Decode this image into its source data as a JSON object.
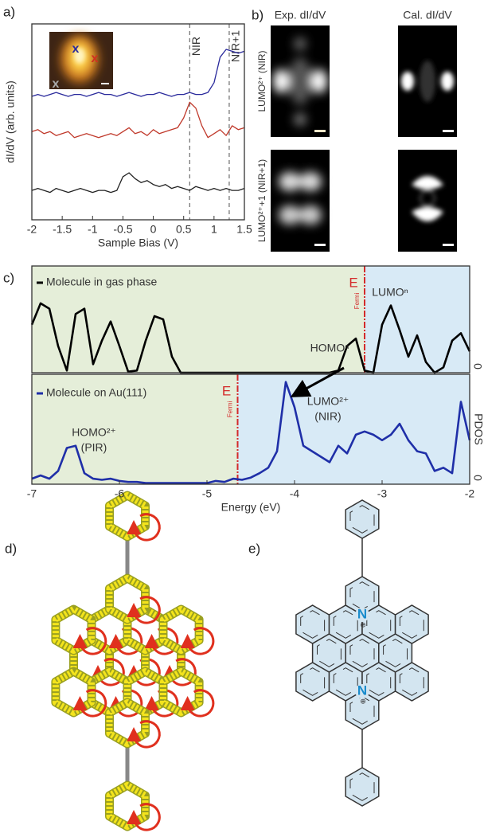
{
  "panels": [
    "a)",
    "b)",
    "c)",
    "d)",
    "e)"
  ],
  "panel_b": {
    "columns": [
      "Exp. dI/dV",
      "Cal. dI/dV"
    ],
    "rows": [
      "LUMO²⁺ (NIR)",
      "LUMO²⁺+1 (NIR+1)"
    ]
  },
  "panel_e": {
    "atoms": [
      "N",
      "N"
    ],
    "charges": [
      "⊕",
      "⊕"
    ]
  },
  "chart_data": [
    {
      "type": "line",
      "xlabel": "Sample Bias (V)",
      "ylabel": "dI/dV (arb. units)",
      "xlim": [
        -2,
        1.5
      ],
      "xticks": [
        -2,
        -1.5,
        -1,
        -0.5,
        0,
        0.5,
        1,
        1.5
      ],
      "ylim": [
        0,
        10
      ],
      "x": [
        -2,
        -1.9,
        -1.8,
        -1.7,
        -1.6,
        -1.5,
        -1.4,
        -1.3,
        -1.2,
        -1.1,
        -1,
        -0.9,
        -0.8,
        -0.7,
        -0.6,
        -0.5,
        -0.4,
        -0.3,
        -0.2,
        -0.1,
        0,
        0.1,
        0.2,
        0.3,
        0.4,
        0.5,
        0.6,
        0.7,
        0.8,
        0.9,
        1,
        1.1,
        1.2,
        1.3,
        1.4,
        1.5
      ],
      "series": [
        {
          "color": "#2a2a9c",
          "values": [
            6.3,
            6.4,
            6.3,
            6.4,
            6.5,
            6.4,
            6.3,
            6.4,
            6.4,
            6.3,
            6.4,
            6.5,
            6.4,
            6.4,
            6.3,
            6.4,
            6.5,
            6.4,
            6.3,
            6.4,
            6.4,
            6.5,
            6.4,
            6.3,
            6.4,
            6.4,
            6.5,
            6.4,
            6.4,
            6.5,
            7.0,
            8.3,
            8.7,
            8.6,
            8.5,
            8.6
          ]
        },
        {
          "color": "#c0392b",
          "values": [
            4.5,
            4.6,
            4.4,
            4.5,
            4.3,
            4.4,
            4.5,
            4.2,
            4.3,
            4.4,
            4.3,
            4.2,
            4.3,
            4.4,
            4.3,
            4.5,
            4.7,
            4.4,
            4.5,
            4.3,
            4.6,
            4.4,
            4.5,
            4.6,
            4.7,
            5.2,
            6.0,
            5.7,
            4.8,
            4.2,
            4.4,
            4.6,
            4.3,
            4.8,
            4.6,
            4.7
          ]
        },
        {
          "color": "#222222",
          "values": [
            1.5,
            1.6,
            1.5,
            1.4,
            1.6,
            1.5,
            1.4,
            1.5,
            1.6,
            1.5,
            1.4,
            1.5,
            1.5,
            1.4,
            1.5,
            2.2,
            2.4,
            2.1,
            1.9,
            2.0,
            1.8,
            1.7,
            1.8,
            1.6,
            1.7,
            1.6,
            1.5,
            1.7,
            1.6,
            1.5,
            1.6,
            1.5,
            1.6,
            1.5,
            1.5,
            1.6
          ]
        }
      ],
      "vlines": [
        {
          "x": 0.6,
          "label": "NIR"
        },
        {
          "x": 1.25,
          "label": "NIR+1"
        }
      ],
      "inset_marks": [
        {
          "label": "x",
          "color": "#2a2a9c"
        },
        {
          "label": "x",
          "color": "#d03020"
        },
        {
          "label": "x",
          "color": "#aaaaaa"
        }
      ]
    },
    {
      "type": "line",
      "xlim": [
        -7,
        -2
      ],
      "ylim": [
        0,
        1
      ],
      "y2ticks": [
        0
      ],
      "fermi": -3.2,
      "fermi_label": "E",
      "fermi_sub": "Fermi",
      "x": [
        -7,
        -6.9,
        -6.8,
        -6.7,
        -6.6,
        -6.5,
        -6.4,
        -6.3,
        -6.2,
        -6.1,
        -6,
        -5.9,
        -5.8,
        -5.7,
        -5.6,
        -5.5,
        -5.4,
        -5.3,
        -5.2,
        -5.1,
        -5,
        -4.9,
        -4.8,
        -4.7,
        -4.6,
        -4.5,
        -4.4,
        -4.3,
        -4.2,
        -4.1,
        -4,
        -3.9,
        -3.8,
        -3.7,
        -3.6,
        -3.5,
        -3.4,
        -3.3,
        -3.2,
        -3.1,
        -3,
        -2.9,
        -2.8,
        -2.7,
        -2.6,
        -2.5,
        -2.4,
        -2.3,
        -2.2,
        -2.1,
        -2
      ],
      "series": [
        {
          "name": "Molecule in gas phase",
          "color": "#000000",
          "values": [
            0.45,
            0.65,
            0.6,
            0.25,
            0.02,
            0.55,
            0.6,
            0.08,
            0.3,
            0.48,
            0.25,
            0.01,
            0.02,
            0.3,
            0.53,
            0.5,
            0.15,
            0,
            0,
            0,
            0,
            0,
            0,
            0,
            0,
            0,
            0,
            0,
            0,
            0,
            0,
            0,
            0,
            0,
            0,
            0.02,
            0.25,
            0.32,
            0.02,
            0,
            0.45,
            0.63,
            0.4,
            0.15,
            0.35,
            0.1,
            0,
            0.05,
            0.3,
            0.37,
            0.2
          ]
        }
      ],
      "annotations": [
        "HOMOⁿ",
        "LUMOⁿ"
      ],
      "shading": [
        "#e5eed9",
        "#d8eaf6"
      ]
    },
    {
      "type": "line",
      "xlabel": "Energy (eV)",
      "y2label": "PDOS",
      "xlim": [
        -7,
        -2
      ],
      "xticks": [
        -7,
        -6,
        -5,
        -4,
        -3,
        -2
      ],
      "ylim": [
        0,
        1
      ],
      "y2ticks": [
        0
      ],
      "fermi": -4.65,
      "fermi_label": "E",
      "fermi_sub": "Fermi",
      "x": [
        -7,
        -6.9,
        -6.8,
        -6.7,
        -6.6,
        -6.5,
        -6.4,
        -6.3,
        -6.2,
        -6.1,
        -6,
        -5.9,
        -5.8,
        -5.7,
        -5.6,
        -5.5,
        -5.4,
        -5.3,
        -5.2,
        -5.1,
        -5,
        -4.9,
        -4.8,
        -4.7,
        -4.6,
        -4.5,
        -4.4,
        -4.3,
        -4.2,
        -4.1,
        -4,
        -3.9,
        -3.8,
        -3.7,
        -3.6,
        -3.5,
        -3.4,
        -3.3,
        -3.2,
        -3.1,
        -3,
        -2.9,
        -2.8,
        -2.7,
        -2.6,
        -2.5,
        -2.4,
        -2.3,
        -2.2,
        -2.1,
        -2
      ],
      "series": [
        {
          "name": "Molecule on Au(111)",
          "color": "#1f2fa8",
          "values": [
            0.05,
            0.08,
            0.05,
            0.12,
            0.33,
            0.35,
            0.1,
            0.05,
            0.04,
            0.05,
            0.03,
            0.02,
            0.02,
            0.01,
            0.01,
            0.01,
            0.01,
            0.01,
            0.01,
            0.01,
            0.01,
            0.03,
            0.02,
            0.05,
            0.04,
            0.06,
            0.1,
            0.15,
            0.3,
            0.93,
            0.7,
            0.35,
            0.3,
            0.25,
            0.2,
            0.35,
            0.28,
            0.45,
            0.48,
            0.45,
            0.4,
            0.45,
            0.55,
            0.4,
            0.3,
            0.28,
            0.12,
            0.15,
            0.1,
            0.75,
            0.4
          ]
        }
      ],
      "annotations": [
        "LUMO²⁺",
        "(NIR)",
        "HOMO²⁺",
        "(PIR)"
      ],
      "shading": [
        "#e5eed9",
        "#d8eaf6"
      ]
    }
  ]
}
